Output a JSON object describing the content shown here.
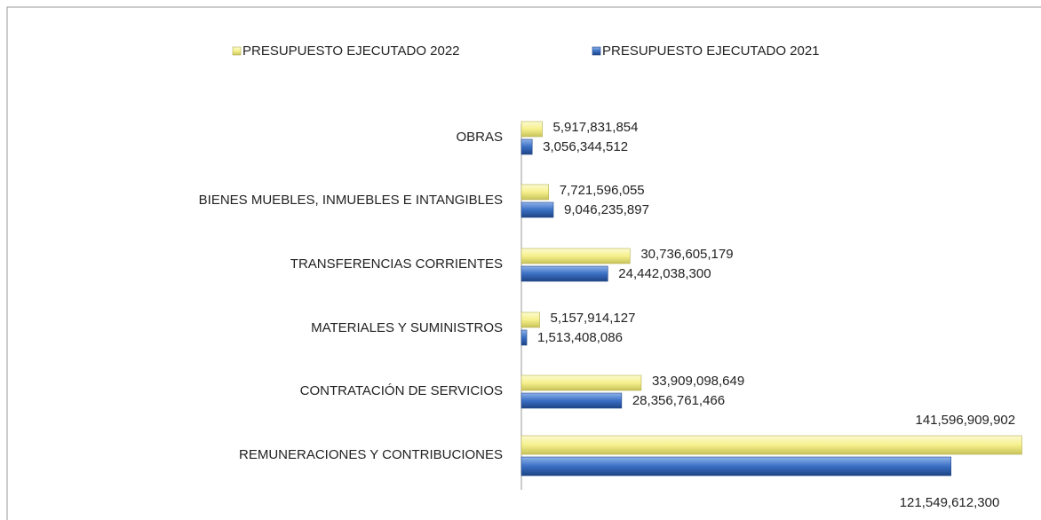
{
  "chart_data": {
    "type": "bar",
    "orientation": "horizontal",
    "categories": [
      "OBRAS",
      "BIENES MUEBLES, INMUEBLES E INTANGIBLES",
      "TRANSFERENCIAS CORRIENTES",
      "MATERIALES Y SUMINISTROS",
      "CONTRATACIÓN DE SERVICIOS",
      "REMUNERACIONES Y CONTRIBUCIONES"
    ],
    "series": [
      {
        "name": "PRESUPUESTO EJECUTADO 2022",
        "color": "#f5f08c",
        "values": [
          5917831854,
          7721596055,
          30736605179,
          5157914127,
          33909098649,
          141596909902
        ],
        "value_labels": [
          "5,917,831,854",
          "7,721,596,055",
          "30,736,605,179",
          "5,157,914,127",
          "33,909,098,649",
          "141,596,909,902"
        ]
      },
      {
        "name": "PRESUPUESTO EJECUTADO 2021",
        "color": "#3a6fc4",
        "values": [
          3056344512,
          9046235897,
          24442038300,
          1513408086,
          28356761466,
          121549612300
        ],
        "value_labels": [
          "3,056,344,512",
          "9,046,235,897",
          "24,442,038,300",
          "1,513,408,086",
          "28,356,761,466",
          "121,549,612,300"
        ]
      }
    ],
    "xlim": [
      0,
      147000000000
    ]
  }
}
